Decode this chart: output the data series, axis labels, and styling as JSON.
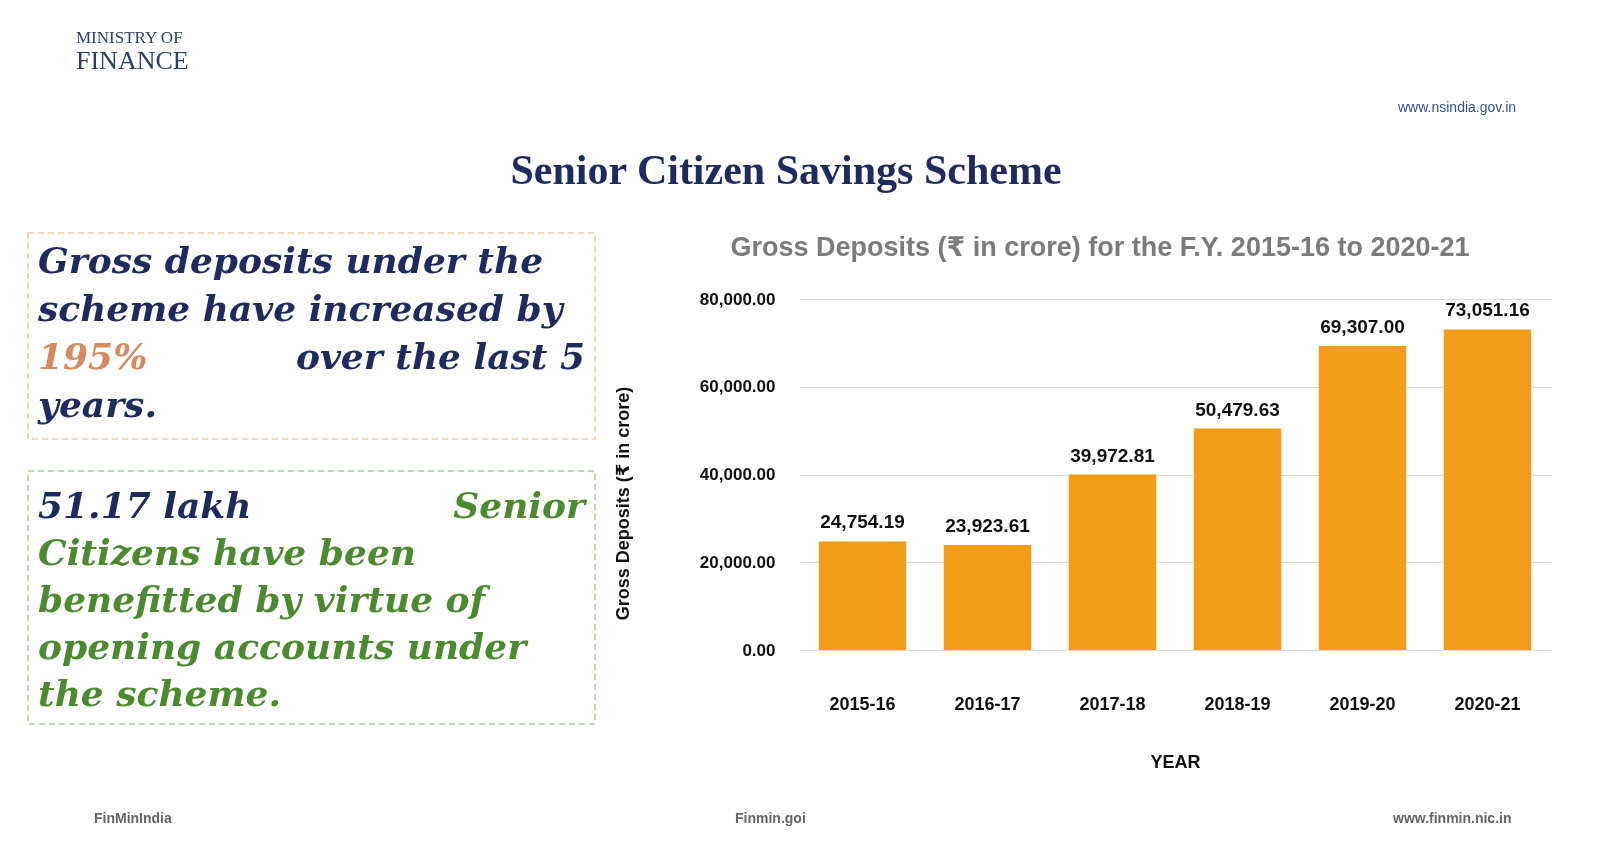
{
  "chart_data": {
    "type": "bar",
    "title": "Senior Citizen Savings Scheme",
    "subtitle": "Gross Deposits (₹ in crore) for the F.Y. 2015-16 to 2020-21",
    "xlabel": "YEAR",
    "ylabel": "Gross Deposits (₹ in crore)",
    "categories": [
      "2015-16",
      "2016-17",
      "2017-18",
      "2018-19",
      "2019-20",
      "2020-21"
    ],
    "values": [
      24754.19,
      23923.61,
      39972.81,
      50479.63,
      69307.0,
      73051.16
    ],
    "color": "#f39c1a",
    "value_labels": [
      "24,754.19",
      "23,923.61",
      "39,972.81",
      "50,479.63",
      "69,307.00",
      "73,051.16"
    ],
    "ylim": [
      0,
      80000
    ],
    "yticks": [
      {
        "value": 0,
        "label": "0.00"
      },
      {
        "value": 20000,
        "label": "20,000.00"
      },
      {
        "value": 40000,
        "label": "40,000.00"
      },
      {
        "value": 60000,
        "label": "60,000.00"
      },
      {
        "value": 80000,
        "label": "80,000.00"
      }
    ],
    "grid": "y",
    "annotations": [
      "MINISTRY OF",
      "FINANCE",
      "www.nsindia.gov.in",
      "Gross deposits under the scheme have increased by",
      "195%",
      "over the last 5",
      "years.",
      "51.17 lakh",
      "Senior",
      "Citizens have been benefitted by virtue of opening accounts under the scheme.",
      "FinMinIndia",
      "Finmin.goi",
      "www.finmin.nic.in"
    ]
  }
}
